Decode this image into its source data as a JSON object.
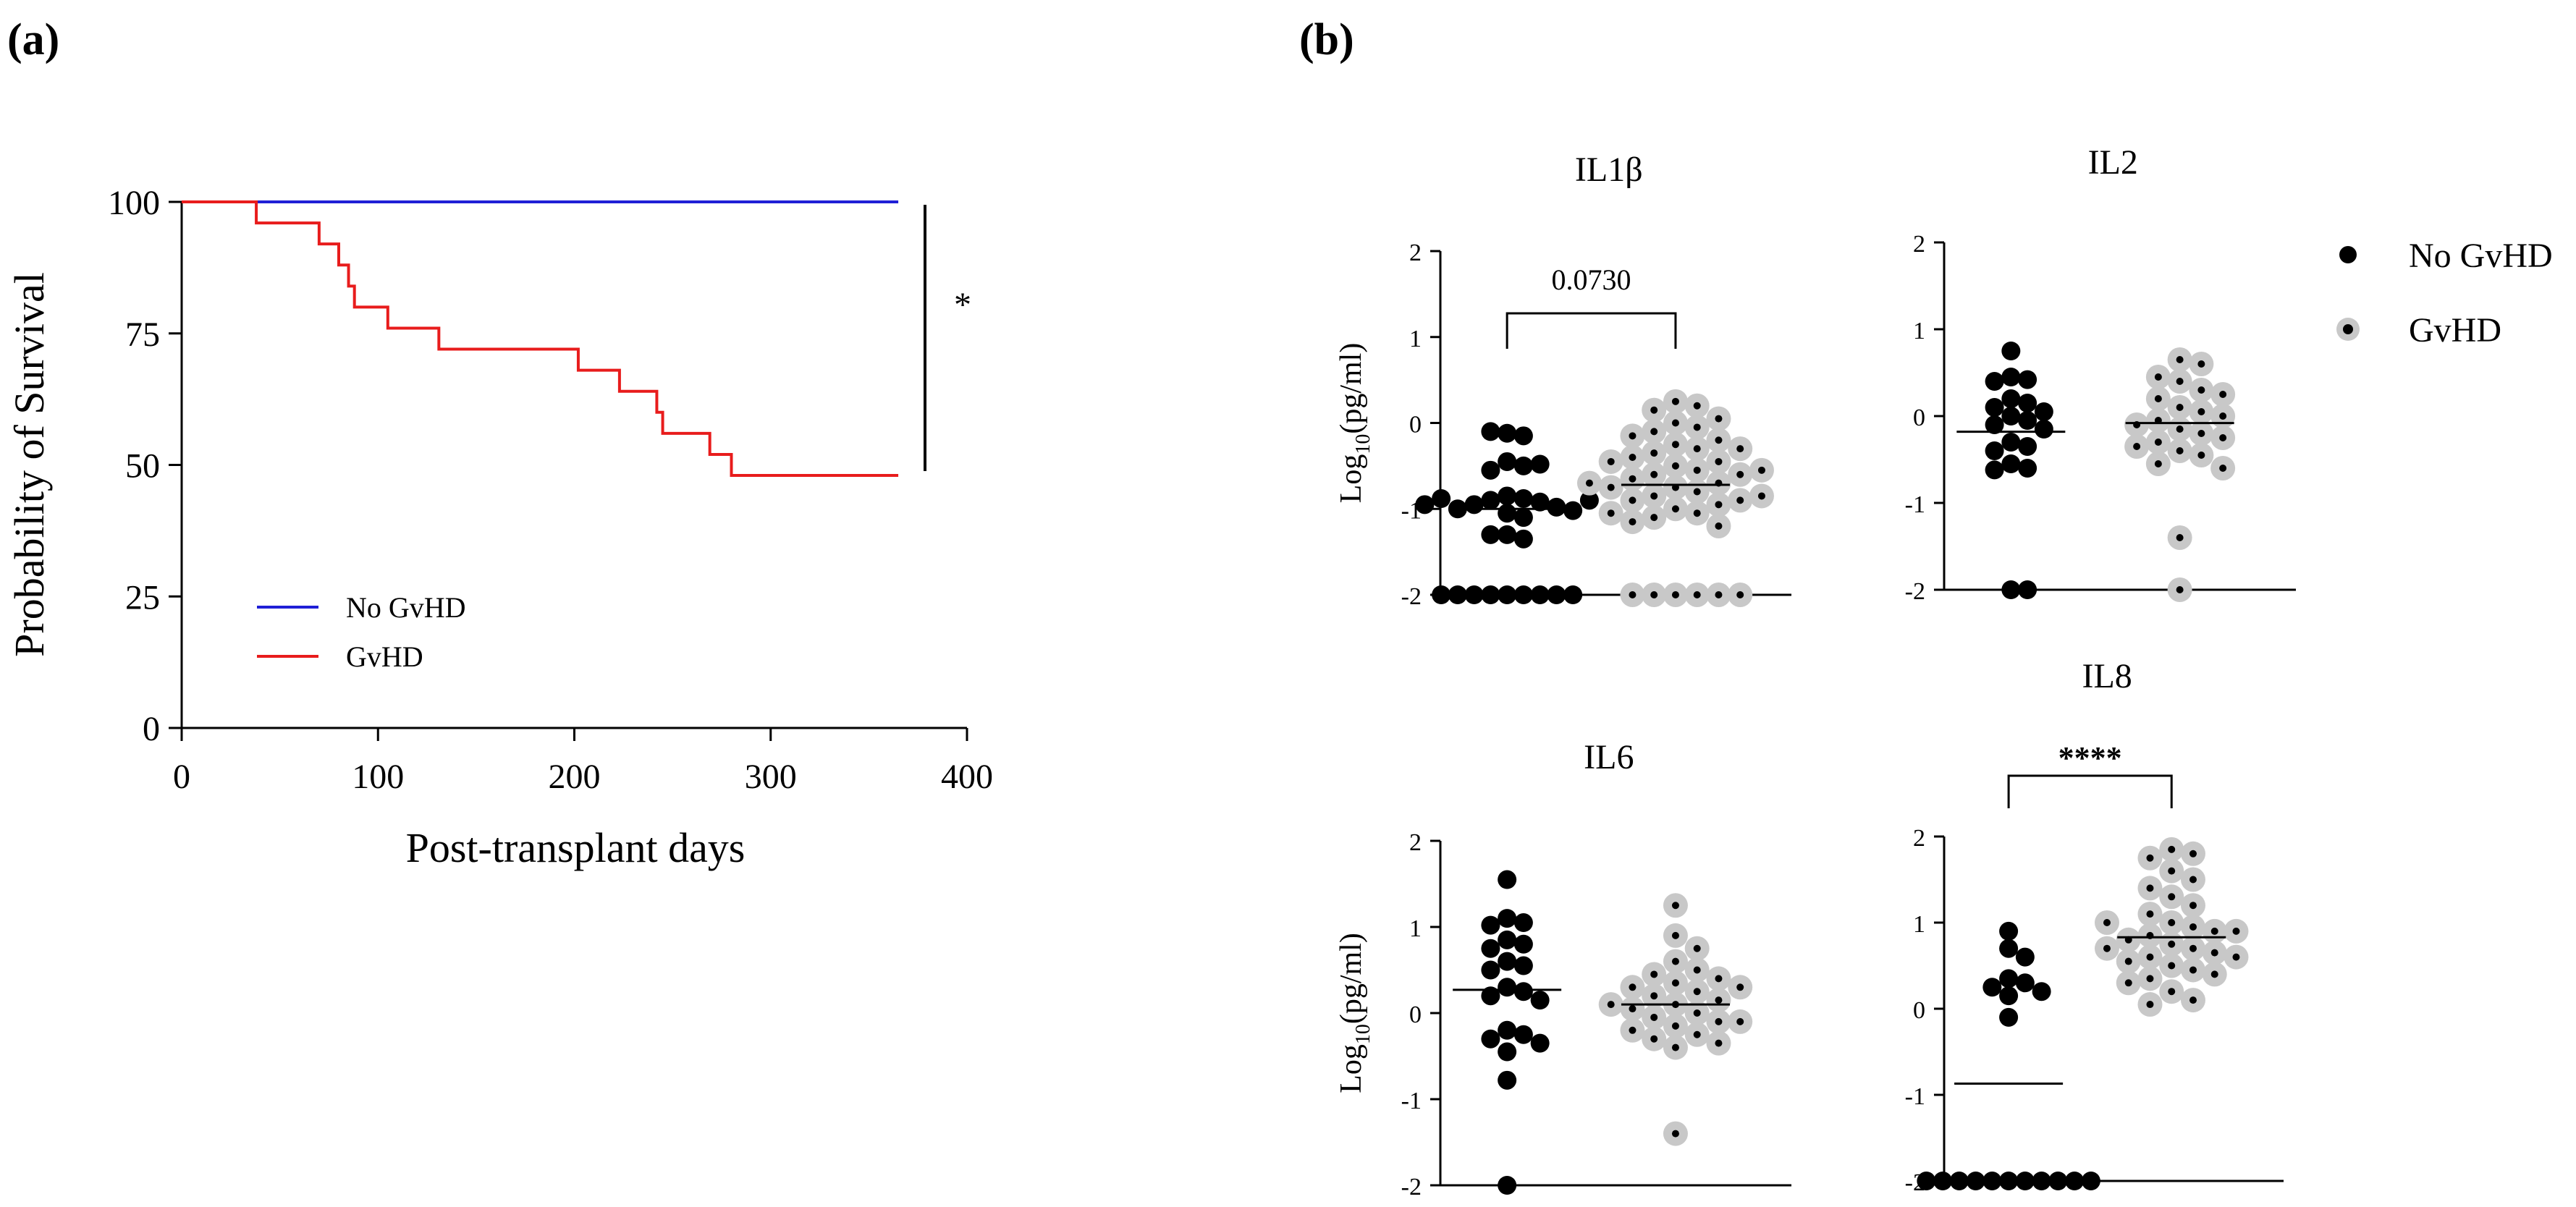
{
  "panels": {
    "a_label": "(a)",
    "b_label": "(b)"
  },
  "chart_data": [
    {
      "type": "line",
      "id": "survival",
      "step": true,
      "title": "",
      "xlabel": "Post-transplant days",
      "ylabel": "Probability of Survival",
      "xlim": [
        0,
        400
      ],
      "ylim": [
        0,
        100
      ],
      "xticks": [
        "0",
        "100",
        "200",
        "300",
        "400"
      ],
      "yticks": [
        "0",
        "25",
        "50",
        "75",
        "100"
      ],
      "legend_position": "lower-left",
      "annotation": "*",
      "series": [
        {
          "name": "No GvHD",
          "color": "#1f1fd6",
          "x": [
            0,
            365
          ],
          "y": [
            100,
            100
          ]
        },
        {
          "name": "GvHD",
          "color": "#e81c1c",
          "x": [
            0,
            38,
            70,
            80,
            85,
            88,
            105,
            131,
            202,
            223,
            242,
            245,
            269,
            280,
            365
          ],
          "y": [
            100,
            96,
            92,
            88,
            84,
            80,
            76,
            72,
            68,
            64,
            60,
            56,
            52,
            48,
            48
          ]
        }
      ]
    },
    {
      "type": "scatter",
      "id": "il1b",
      "title": "IL1β",
      "ylabel": "Log10(pg/ml)",
      "ylim": [
        -2,
        2
      ],
      "yticks": [
        "-2",
        "-1",
        "0",
        "1",
        "2"
      ],
      "annotation": "0.0730",
      "series": [
        {
          "name": "No GvHD",
          "mean": -1.0,
          "values": [
            -0.12,
            -0.15,
            -0.1,
            -0.45,
            -0.5,
            -0.55,
            -0.48,
            -0.85,
            -0.88,
            -0.9,
            -0.92,
            -0.95,
            -0.98,
            -1.0,
            -1.02,
            -0.88,
            -0.9,
            -0.95,
            -1.05,
            -1.1,
            -1.3,
            -1.35,
            -1.3,
            -2,
            -2,
            -2,
            -2,
            -2,
            -2,
            -2,
            -2,
            -2
          ]
        },
        {
          "name": "GvHD",
          "mean": -0.72,
          "values": [
            0.25,
            0.2,
            0.15,
            0.05,
            0.0,
            -0.05,
            -0.1,
            -0.15,
            -0.2,
            -0.25,
            -0.3,
            -0.35,
            -0.4,
            -0.45,
            -0.5,
            -0.55,
            -0.6,
            -0.65,
            -0.7,
            -0.75,
            -0.8,
            -0.85,
            -0.9,
            -0.95,
            -1.0,
            -1.05,
            -1.1,
            -1.15,
            -1.2,
            -0.3,
            -0.45,
            -0.6,
            -0.75,
            -0.9,
            -1.05,
            -0.55,
            -0.7,
            -0.85,
            -2,
            -2,
            -2,
            -2,
            -2,
            -2
          ]
        }
      ]
    },
    {
      "type": "scatter",
      "id": "il2",
      "title": "IL2",
      "ylabel": "",
      "ylim": [
        -2,
        2
      ],
      "yticks": [
        "-2",
        "-1",
        "0",
        "1",
        "2"
      ],
      "annotation": "",
      "series": [
        {
          "name": "No GvHD",
          "mean": -0.18,
          "values": [
            0.75,
            0.45,
            0.42,
            0.4,
            0.2,
            0.15,
            0.1,
            0.05,
            0.0,
            -0.05,
            -0.1,
            -0.15,
            -0.3,
            -0.35,
            -0.4,
            -0.55,
            -0.6,
            -0.62,
            -2,
            -2
          ]
        },
        {
          "name": "GvHD",
          "mean": -0.08,
          "values": [
            0.65,
            0.6,
            0.45,
            0.4,
            0.3,
            0.25,
            0.2,
            0.1,
            0.05,
            0.0,
            -0.05,
            -0.1,
            -0.15,
            -0.2,
            -0.25,
            -0.3,
            -0.35,
            -0.4,
            -0.45,
            -0.55,
            -0.6,
            -1.4,
            -2
          ]
        }
      ]
    },
    {
      "type": "scatter",
      "id": "il6",
      "title": "IL6",
      "ylabel": "Log10(pg/ml)",
      "ylim": [
        -2,
        2
      ],
      "yticks": [
        "-2",
        "-1",
        "0",
        "1",
        "2"
      ],
      "annotation": "",
      "series": [
        {
          "name": "No GvHD",
          "mean": 0.27,
          "values": [
            1.55,
            1.1,
            1.05,
            1.02,
            0.85,
            0.8,
            0.75,
            0.6,
            0.55,
            0.5,
            0.3,
            0.25,
            0.2,
            0.15,
            -0.2,
            -0.25,
            -0.3,
            -0.35,
            -0.45,
            -0.78,
            -2
          ]
        },
        {
          "name": "GvHD",
          "mean": 0.1,
          "values": [
            1.25,
            0.9,
            0.75,
            0.6,
            0.5,
            0.45,
            0.4,
            0.35,
            0.3,
            0.25,
            0.2,
            0.15,
            0.1,
            0.05,
            0.0,
            -0.05,
            -0.1,
            -0.15,
            -0.2,
            -0.25,
            -0.3,
            -0.35,
            -0.4,
            0.3,
            0.1,
            -0.1,
            -1.4
          ]
        }
      ]
    },
    {
      "type": "scatter",
      "id": "il8",
      "title": "IL8",
      "ylabel": "",
      "ylim": [
        -2,
        2
      ],
      "yticks": [
        "-2",
        "-1",
        "0",
        "1",
        "2"
      ],
      "annotation": "****",
      "series": [
        {
          "name": "No GvHD",
          "mean": -0.87,
          "values": [
            0.9,
            0.7,
            0.6,
            0.35,
            0.3,
            0.25,
            0.2,
            0.15,
            -0.1,
            -2,
            -2,
            -2,
            -2,
            -2,
            -2,
            -2,
            -2,
            -2,
            -2,
            -2
          ]
        },
        {
          "name": "GvHD",
          "mean": 0.83,
          "values": [
            1.85,
            1.8,
            1.75,
            1.6,
            1.5,
            1.4,
            1.3,
            1.2,
            1.1,
            1.0,
            0.95,
            0.9,
            0.85,
            0.8,
            0.75,
            0.7,
            0.65,
            0.6,
            0.55,
            0.5,
            0.45,
            0.4,
            0.35,
            0.3,
            0.2,
            0.1,
            0.05,
            0.9,
            0.7,
            0.6,
            1.0
          ]
        }
      ]
    }
  ],
  "dot_legend": [
    {
      "label": "No GvHD",
      "fill": "#000000",
      "ring": "none"
    },
    {
      "label": "GvHD",
      "fill": "#000000",
      "ring": "#c8c8c8"
    }
  ]
}
